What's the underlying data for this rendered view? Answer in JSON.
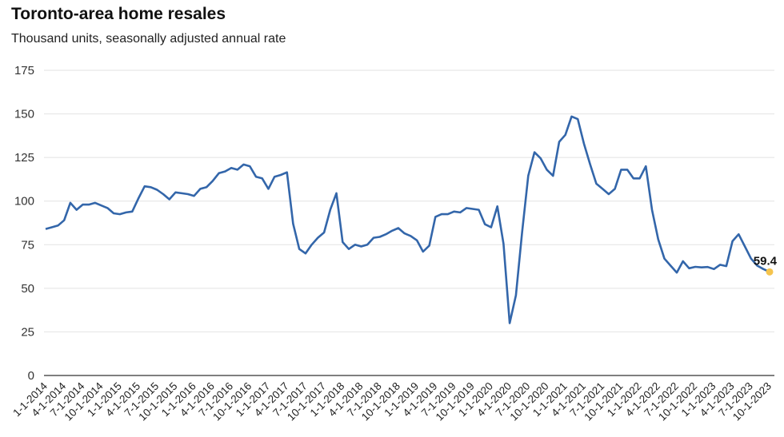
{
  "chart_data": {
    "type": "line",
    "title": "Toronto-area home resales",
    "subtitle": "Thousand units, seasonally adjusted annual rate",
    "xlabel": "",
    "ylabel": "",
    "ylim": [
      0,
      175
    ],
    "yticks": [
      0,
      25,
      50,
      75,
      100,
      125,
      150,
      175
    ],
    "grid": true,
    "x_start": "1-1-2014",
    "x_frequency": "monthly",
    "xtick_labels": [
      "1-1-2014",
      "4-1-2014",
      "7-1-2014",
      "10-1-2014",
      "1-1-2015",
      "4-1-2015",
      "7-1-2015",
      "10-1-2015",
      "1-1-2016",
      "4-1-2016",
      "7-1-2016",
      "10-1-2016",
      "1-1-2017",
      "4-1-2017",
      "7-1-2017",
      "10-1-2017",
      "1-1-2018",
      "4-1-2018",
      "7-1-2018",
      "10-1-2018",
      "1-1-2019",
      "4-1-2019",
      "7-1-2019",
      "10-1-2019",
      "1-1-2020",
      "4-1-2020",
      "7-1-2020",
      "10-1-2020",
      "1-1-2021",
      "4-1-2021",
      "7-1-2021",
      "10-1-2021",
      "1-1-2022",
      "4-1-2022",
      "7-1-2022",
      "10-1-2022",
      "1-1-2023",
      "4-1-2023",
      "7-1-2023",
      "10-1-2023"
    ],
    "series": [
      {
        "name": "Home resales",
        "color": "#3366aa",
        "values": [
          84,
          85,
          86,
          89,
          99,
          95,
          98,
          98,
          99,
          97.5,
          96,
          93,
          92.5,
          93.5,
          94,
          101.5,
          108.5,
          108,
          106.5,
          104,
          101,
          105,
          104.5,
          104,
          103,
          107,
          108,
          111.5,
          116,
          117,
          119,
          118,
          121,
          120,
          114,
          113,
          107,
          114,
          115,
          116.5,
          87,
          72.5,
          70,
          75,
          79,
          82,
          95,
          104.5,
          76.5,
          72.5,
          75,
          74,
          75,
          79,
          79.5,
          81,
          83,
          84.5,
          81.5,
          80,
          77.5,
          71,
          74.5,
          91,
          92.5,
          92.5,
          94,
          93.5,
          96,
          95.5,
          95,
          86.7,
          85,
          97,
          75.5,
          30,
          46,
          82,
          114.5,
          128,
          124.5,
          118,
          114.5,
          134,
          138,
          148.5,
          147,
          133,
          121,
          110,
          107,
          104,
          107,
          118,
          118,
          113,
          113,
          120,
          95,
          78,
          67,
          63,
          59,
          65.5,
          61.5,
          62.3,
          62,
          62.2,
          61,
          63.5,
          62.7,
          77,
          81,
          74,
          67,
          63,
          61,
          59.4
        ]
      }
    ],
    "annotation": {
      "text": "59.4",
      "marker_color": "#f5c44e"
    }
  }
}
